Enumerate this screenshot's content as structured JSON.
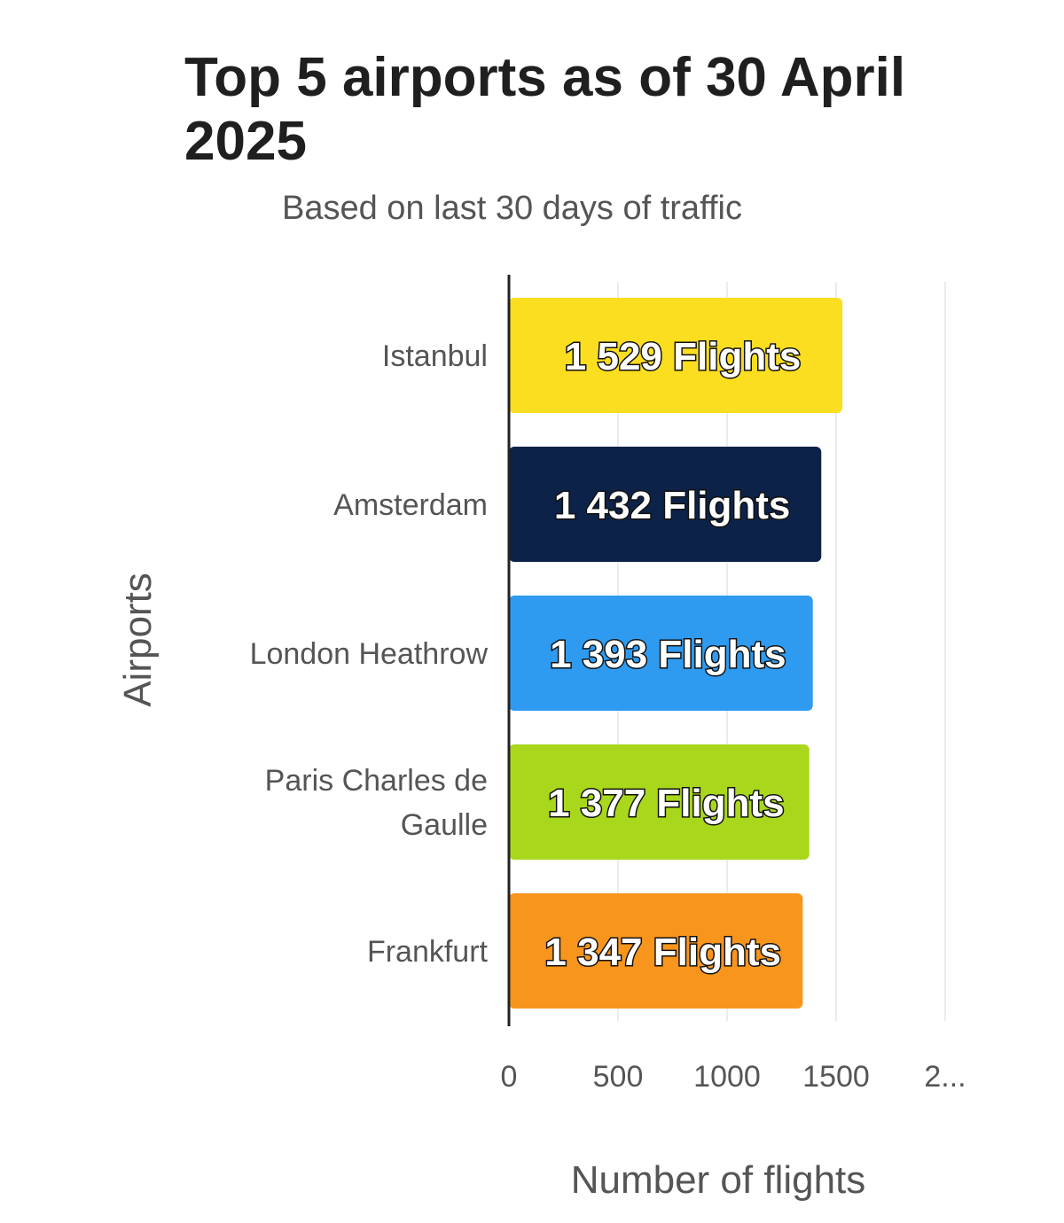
{
  "chart_data": {
    "type": "bar",
    "orientation": "horizontal",
    "title": "Top 5 airports as of 30 April 2025",
    "subtitle": "Based on last 30 days of traffic",
    "xlabel": "Number of flights",
    "ylabel": "Airports",
    "xlim": [
      0,
      2000
    ],
    "x_ticks": [
      "0",
      "500",
      "1000",
      "1500",
      "2..."
    ],
    "grid": true,
    "categories": [
      [
        "Istanbul"
      ],
      [
        "Amsterdam"
      ],
      [
        "London Heathrow"
      ],
      [
        "Paris Charles de",
        "Gaulle"
      ],
      [
        "Frankfurt"
      ]
    ],
    "values": [
      1529,
      1432,
      1393,
      1377,
      1347
    ],
    "data_labels": [
      "1 529 Flights",
      "1 432 Flights",
      "1 393 Flights",
      "1 377 Flights",
      "1 347 Flights"
    ],
    "colors": [
      "#fbde1f",
      "#0d2248",
      "#2f9bf0",
      "#a9d71c",
      "#f8951d"
    ]
  }
}
